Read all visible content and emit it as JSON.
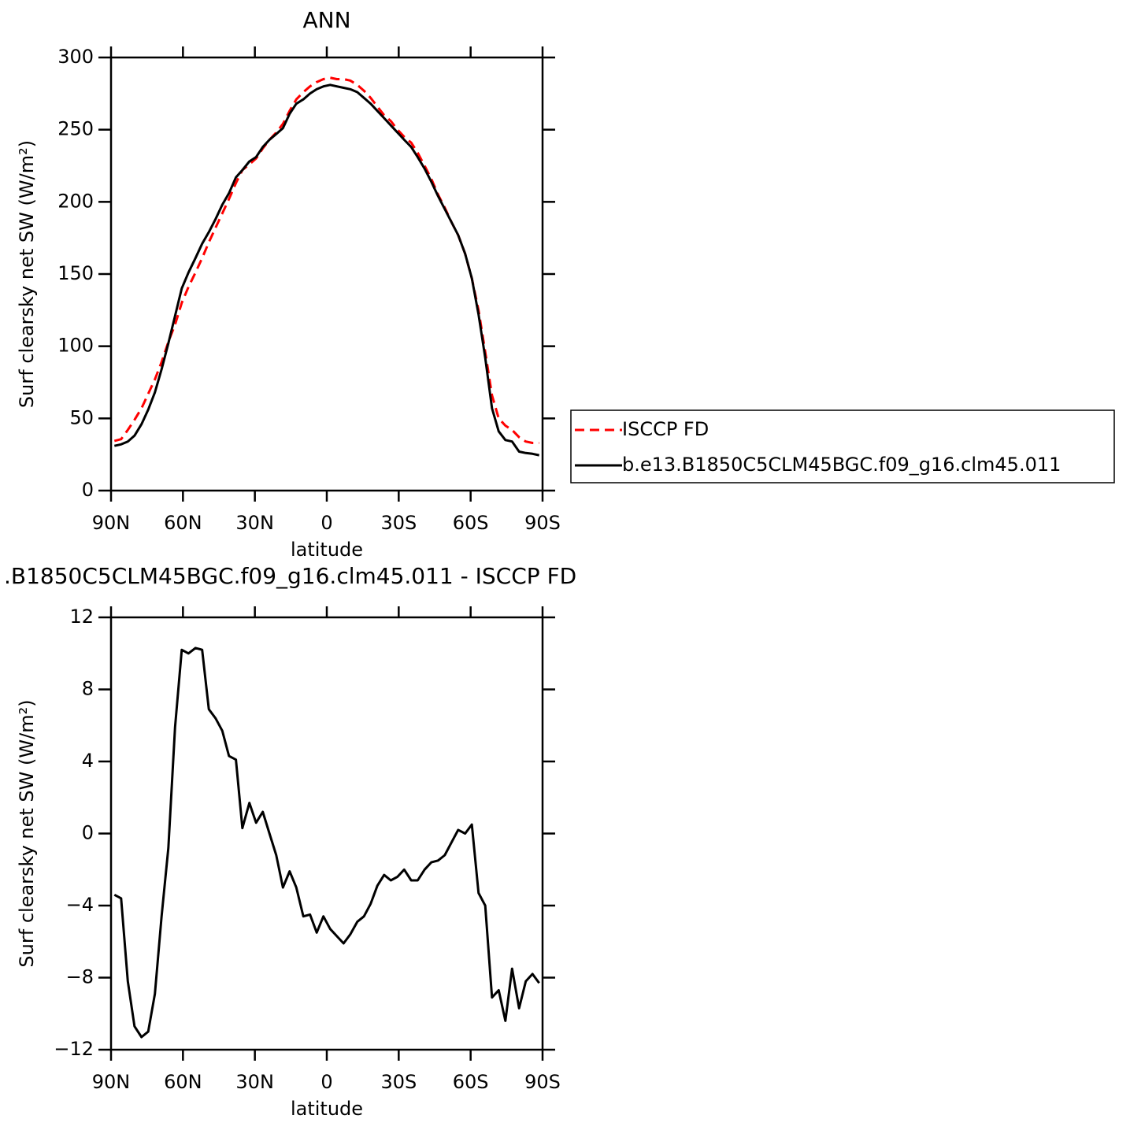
{
  "chart_data": [
    {
      "type": "line",
      "title": "ANN",
      "xlabel": "latitude",
      "ylabel": "Surf clearsky net SW (W/m²)",
      "x": [
        88.6,
        85.8,
        83.0,
        80.2,
        77.3,
        74.5,
        71.7,
        68.9,
        66.1,
        63.3,
        60.5,
        57.7,
        54.8,
        52.0,
        49.2,
        46.4,
        43.6,
        40.8,
        37.9,
        35.2,
        32.3,
        29.5,
        26.7,
        23.9,
        21.1,
        18.3,
        15.5,
        12.7,
        9.8,
        7.0,
        4.2,
        1.4,
        -1.4,
        -4.2,
        -7.0,
        -9.8,
        -12.7,
        -15.5,
        -18.3,
        -21.1,
        -23.9,
        -26.7,
        -29.5,
        -32.3,
        -35.2,
        -37.9,
        -40.8,
        -43.6,
        -46.4,
        -49.2,
        -52.0,
        -54.8,
        -57.7,
        -60.5,
        -63.3,
        -66.1,
        -68.9,
        -71.7,
        -74.5,
        -77.3,
        -80.2,
        -83.0,
        -85.8,
        -88.6
      ],
      "series": [
        {
          "name": "ISCCP FD",
          "color": "#ff0000",
          "dash": true,
          "values": [
            34.4,
            35.6,
            42,
            49,
            57,
            67,
            77,
            89,
            103,
            115,
            130,
            141,
            151,
            161,
            172,
            182,
            192,
            202,
            213,
            222,
            226,
            230,
            237,
            243,
            248,
            254,
            263,
            271,
            276,
            280,
            283,
            285,
            286,
            285,
            285,
            284,
            281,
            277,
            272,
            266,
            260,
            256,
            250,
            245,
            241,
            234,
            225,
            216,
            205,
            196,
            186,
            177,
            164,
            147,
            125,
            96,
            66,
            50,
            45,
            42,
            37,
            34,
            33,
            33
          ]
        },
        {
          "name": "b.e13.B1850C5CLM45BGC.f09_g16.clm45.011",
          "color": "#000000",
          "dash": false,
          "values": [
            31,
            32,
            34,
            38,
            46,
            56,
            68,
            84,
            102,
            121,
            140,
            151,
            161,
            171,
            179,
            188,
            198,
            206,
            217,
            222,
            228,
            231,
            238,
            243,
            247,
            251,
            261,
            268,
            271,
            275,
            278,
            280,
            281,
            280,
            279,
            278,
            276,
            272,
            268,
            263,
            258,
            253,
            248,
            243,
            238,
            231,
            223,
            214,
            204,
            195,
            186,
            177,
            164,
            147,
            122,
            92,
            57,
            41,
            35,
            34,
            27,
            26,
            25.5,
            24.5
          ]
        }
      ],
      "xlim": [
        90,
        -90
      ],
      "xticks": [
        {
          "value": 90,
          "label": "90N"
        },
        {
          "value": 60,
          "label": "60N"
        },
        {
          "value": 30,
          "label": "30N"
        },
        0,
        {
          "value": -30,
          "label": "30S"
        },
        {
          "value": -60,
          "label": "60S"
        },
        {
          "value": -90,
          "label": "90S"
        }
      ],
      "ylim": [
        0,
        300
      ],
      "yticks": [
        0,
        50,
        100,
        150,
        200,
        250,
        300
      ],
      "legend": "right"
    },
    {
      "type": "line",
      "title": ".B1850C5CLM45BGC.f09_g16.clm45.011 - ISCCP FD",
      "xlabel": "latitude",
      "ylabel": "Surf clearsky net SW (W/m²)",
      "x": [
        88.6,
        85.8,
        83.0,
        80.2,
        77.3,
        74.5,
        71.7,
        68.9,
        66.1,
        63.3,
        60.5,
        57.7,
        54.8,
        52.0,
        49.2,
        46.4,
        43.6,
        40.8,
        37.9,
        35.2,
        32.3,
        29.5,
        26.7,
        23.9,
        21.1,
        18.3,
        15.5,
        12.7,
        9.8,
        7.0,
        4.2,
        1.4,
        -1.4,
        -4.2,
        -7.0,
        -9.8,
        -12.7,
        -15.5,
        -18.3,
        -21.1,
        -23.9,
        -26.7,
        -29.5,
        -32.3,
        -35.2,
        -37.9,
        -40.8,
        -43.6,
        -46.4,
        -49.2,
        -52.0,
        -54.8,
        -57.7,
        -60.5,
        -63.3,
        -66.1,
        -68.9,
        -71.7,
        -74.5,
        -77.3,
        -80.2,
        -83.0,
        -85.8,
        -88.6
      ],
      "values": [
        -3.4,
        -3.6,
        -8.2,
        -10.7,
        -11.3,
        -11.0,
        -8.9,
        -4.6,
        -0.8,
        5.9,
        10.2,
        10.0,
        10.3,
        10.2,
        6.9,
        6.4,
        5.7,
        4.3,
        4.1,
        0.3,
        1.7,
        0.6,
        1.2,
        0.0,
        -1.2,
        -3.0,
        -2.1,
        -3.0,
        -4.6,
        -4.5,
        -5.5,
        -4.6,
        -5.3,
        -5.7,
        -6.1,
        -5.6,
        -4.9,
        -4.6,
        -3.9,
        -2.9,
        -2.3,
        -2.6,
        -2.4,
        -2.0,
        -2.6,
        -2.6,
        -2.0,
        -1.6,
        -1.5,
        -1.2,
        -0.5,
        0.2,
        0.0,
        0.5,
        -3.3,
        -4.0,
        -9.1,
        -8.7,
        -10.4,
        -7.5,
        -9.7,
        -8.2,
        -7.8,
        -8.3
      ],
      "color": "#000000",
      "xlim": [
        90,
        -90
      ],
      "xticks": [
        {
          "value": 90,
          "label": "90N"
        },
        {
          "value": 60,
          "label": "60N"
        },
        {
          "value": 30,
          "label": "30N"
        },
        0,
        {
          "value": -30,
          "label": "30S"
        },
        {
          "value": -60,
          "label": "60S"
        },
        {
          "value": -90,
          "label": "90S"
        }
      ],
      "ylim": [
        -12,
        12
      ],
      "yticks": [
        {
          "value": -12,
          "label": "−12"
        },
        {
          "value": -8,
          "label": "−8"
        },
        {
          "value": -4,
          "label": "−4"
        },
        0,
        4,
        8,
        12
      ]
    }
  ]
}
